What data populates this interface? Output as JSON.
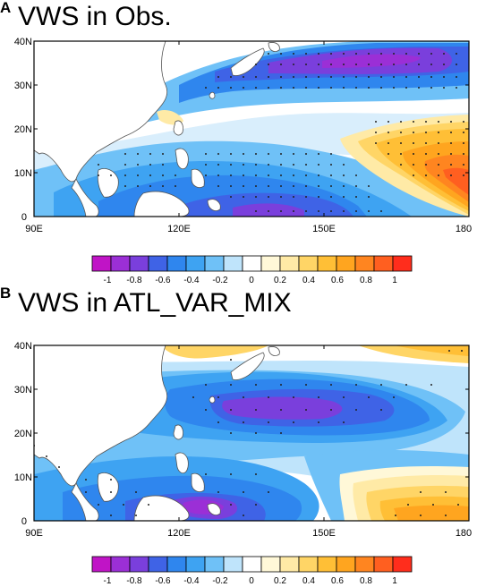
{
  "figure": {
    "panels": [
      {
        "letter": "A",
        "title": "VWS in Obs.",
        "lat_labels": [
          "40N",
          "30N",
          "20N",
          "10N",
          "0"
        ],
        "lon_labels": [
          "90E",
          "120E",
          "150E",
          "180"
        ]
      },
      {
        "letter": "B",
        "title": "VWS in ATL_VAR_MIX",
        "lat_labels": [
          "40N",
          "30N",
          "20N",
          "10N",
          "0"
        ],
        "lon_labels": [
          "90E",
          "120E",
          "150E",
          "180"
        ]
      }
    ],
    "colorbar": {
      "tick_labels": [
        "-1",
        "-0.8",
        "-0.6",
        "-0.4",
        "-0.2",
        "0",
        "0.2",
        "0.4",
        "0.6",
        "0.8",
        "1"
      ],
      "colors": [
        "#c014c6",
        "#9b2fd6",
        "#7a3fdc",
        "#3f63e6",
        "#2f86ee",
        "#3ea3f2",
        "#6fc1f7",
        "#bfe4fb",
        "#ffffff",
        "#fff8d8",
        "#ffeaa6",
        "#ffd566",
        "#ffbf36",
        "#ffa51f",
        "#ff8520",
        "#ff5f20",
        "#ff2d1c"
      ]
    }
  }
}
